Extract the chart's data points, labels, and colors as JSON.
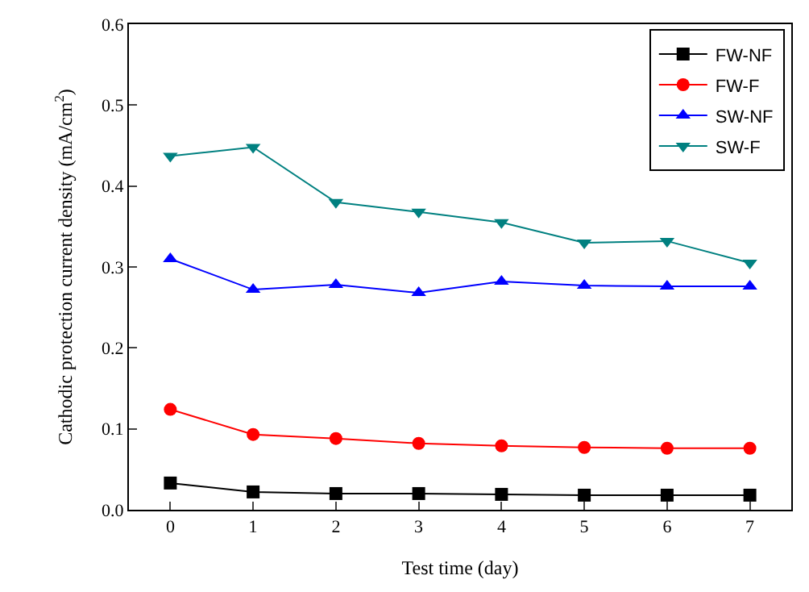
{
  "chart_data": {
    "type": "line",
    "xlabel": "Test time (day)",
    "ylabel": "Cathodic protection current density (mA/cm$^{2}$)",
    "x": [
      0,
      1,
      2,
      3,
      4,
      5,
      6,
      7
    ],
    "xlim": [
      -0.5,
      7.5
    ],
    "xticks": [
      0,
      1,
      2,
      3,
      4,
      5,
      6,
      7
    ],
    "ylim": [
      0,
      0.6
    ],
    "yticks": [
      {
        "value": 0,
        "label": "0.0"
      },
      {
        "value": 0.1,
        "label": "0.1"
      },
      {
        "value": 0.2,
        "label": "0.2"
      },
      {
        "value": 0.3,
        "label": "0.3"
      },
      {
        "value": 0.4,
        "label": "0.4"
      },
      {
        "value": 0.5,
        "label": "0.5"
      },
      {
        "value": 0.6,
        "label": "0.6"
      }
    ],
    "legend": "top right",
    "line_style": "solid",
    "series": [
      {
        "name": "FW-NF",
        "color": "#000000",
        "marker": "square",
        "values": [
          0.033,
          0.022,
          0.02,
          0.02,
          0.019,
          0.018,
          0.018,
          0.018
        ]
      },
      {
        "name": "FW-F",
        "color": "#ff0000",
        "marker": "circle",
        "values": [
          0.124,
          0.093,
          0.088,
          0.082,
          0.079,
          0.077,
          0.076,
          0.076
        ]
      },
      {
        "name": "SW-NF",
        "color": "#0000ff",
        "marker": "triangle",
        "values": [
          0.31,
          0.272,
          0.278,
          0.268,
          0.282,
          0.277,
          0.276,
          0.276
        ]
      },
      {
        "name": "SW-F",
        "color": "#008080",
        "marker": "triangle-down",
        "values": [
          0.437,
          0.448,
          0.38,
          0.368,
          0.355,
          0.33,
          0.332,
          0.305
        ]
      }
    ]
  }
}
